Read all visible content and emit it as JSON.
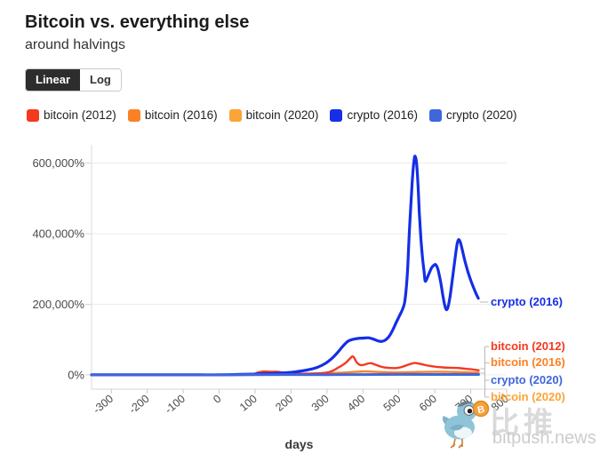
{
  "header": {
    "title": "Bitcoin vs. everything else",
    "subtitle": "around halvings"
  },
  "scale_toggle": {
    "options": [
      {
        "label": "Linear",
        "active": true
      },
      {
        "label": "Log",
        "active": false
      }
    ]
  },
  "legend": {
    "items": [
      {
        "label": "bitcoin (2012)",
        "color": "#f4391f"
      },
      {
        "label": "bitcoin (2016)",
        "color": "#fb8124"
      },
      {
        "label": "bitcoin (2020)",
        "color": "#fba438"
      },
      {
        "label": "crypto (2016)",
        "color": "#152ee6"
      },
      {
        "label": "crypto (2020)",
        "color": "#3f66dc"
      }
    ]
  },
  "chart_data": {
    "type": "line",
    "xlabel": "days",
    "xlim": [
      -355,
      800
    ],
    "ylim": [
      -40500,
      652000
    ],
    "grid": "horizontal",
    "x_ticks": [
      "-300",
      "-200",
      "-100",
      "0",
      "100",
      "200",
      "300",
      "400",
      "500",
      "600",
      "700",
      "800"
    ],
    "x_tick_values": [
      -300,
      -200,
      -100,
      0,
      100,
      200,
      300,
      400,
      500,
      600,
      700,
      800
    ],
    "y_ticks": [
      {
        "value": 0,
        "label": "0%"
      },
      {
        "value": 200000,
        "label": "200,000%"
      },
      {
        "value": 400000,
        "label": "400,000%"
      },
      {
        "value": 600000,
        "label": "600,000%"
      }
    ],
    "series": [
      {
        "name": "bitcoin (2020)",
        "color": "#fba438",
        "width": 2.2,
        "points": [
          [
            -355,
            0
          ],
          [
            -250,
            0
          ],
          [
            -150,
            0
          ],
          [
            -50,
            0
          ],
          [
            0,
            0
          ],
          [
            100,
            300
          ],
          [
            200,
            500
          ],
          [
            300,
            400
          ],
          [
            400,
            700
          ],
          [
            500,
            900
          ],
          [
            600,
            600
          ],
          [
            700,
            350
          ],
          [
            722,
            280
          ]
        ]
      },
      {
        "name": "bitcoin (2016)",
        "color": "#fb8124",
        "width": 2.4,
        "points": [
          [
            -355,
            0
          ],
          [
            -250,
            0
          ],
          [
            -150,
            0
          ],
          [
            -50,
            0
          ],
          [
            0,
            200
          ],
          [
            60,
            900
          ],
          [
            120,
            1700
          ],
          [
            180,
            2400
          ],
          [
            240,
            3200
          ],
          [
            290,
            4200
          ],
          [
            330,
            5600
          ],
          [
            360,
            7200
          ],
          [
            385,
            8800
          ],
          [
            405,
            9600
          ],
          [
            425,
            9200
          ],
          [
            445,
            8200
          ],
          [
            465,
            7400
          ],
          [
            490,
            6900
          ],
          [
            515,
            7100
          ],
          [
            545,
            7800
          ],
          [
            575,
            8400
          ],
          [
            605,
            8800
          ],
          [
            635,
            8400
          ],
          [
            660,
            7900
          ],
          [
            685,
            7300
          ],
          [
            705,
            6900
          ],
          [
            722,
            6700
          ]
        ]
      },
      {
        "name": "bitcoin (2012)",
        "color": "#f4391f",
        "width": 2.4,
        "points": [
          [
            -355,
            0
          ],
          [
            -300,
            0
          ],
          [
            -250,
            0
          ],
          [
            -200,
            0
          ],
          [
            -150,
            0
          ],
          [
            -100,
            0
          ],
          [
            -50,
            0
          ],
          [
            0,
            300
          ],
          [
            40,
            600
          ],
          [
            70,
            900
          ],
          [
            90,
            1500
          ],
          [
            100,
            3500
          ],
          [
            108,
            6500
          ],
          [
            116,
            8500
          ],
          [
            126,
            9500
          ],
          [
            136,
            9000
          ],
          [
            148,
            8700
          ],
          [
            158,
            9200
          ],
          [
            168,
            8000
          ],
          [
            178,
            6000
          ],
          [
            190,
            4200
          ],
          [
            205,
            3200
          ],
          [
            220,
            3000
          ],
          [
            240,
            3400
          ],
          [
            260,
            3900
          ],
          [
            280,
            4600
          ],
          [
            300,
            6500
          ],
          [
            312,
            10000
          ],
          [
            322,
            15000
          ],
          [
            332,
            21000
          ],
          [
            342,
            27000
          ],
          [
            352,
            34000
          ],
          [
            360,
            42000
          ],
          [
            366,
            48000
          ],
          [
            371,
            53000
          ],
          [
            376,
            48000
          ],
          [
            381,
            38000
          ],
          [
            387,
            31000
          ],
          [
            393,
            28000
          ],
          [
            400,
            28000
          ],
          [
            408,
            30000
          ],
          [
            416,
            32500
          ],
          [
            424,
            32800
          ],
          [
            432,
            30000
          ],
          [
            440,
            27000
          ],
          [
            450,
            23500
          ],
          [
            460,
            21000
          ],
          [
            472,
            19800
          ],
          [
            484,
            19200
          ],
          [
            495,
            19500
          ],
          [
            505,
            21500
          ],
          [
            517,
            25500
          ],
          [
            528,
            29500
          ],
          [
            538,
            32500
          ],
          [
            545,
            33500
          ],
          [
            552,
            32800
          ],
          [
            562,
            30500
          ],
          [
            575,
            27500
          ],
          [
            590,
            24800
          ],
          [
            605,
            22800
          ],
          [
            622,
            21200
          ],
          [
            640,
            20300
          ],
          [
            658,
            19800
          ],
          [
            672,
            18800
          ],
          [
            686,
            17200
          ],
          [
            700,
            15800
          ],
          [
            712,
            14300
          ],
          [
            722,
            13200
          ]
        ]
      },
      {
        "name": "crypto (2016)",
        "color": "#152ee6",
        "width": 3.2,
        "points": [
          [
            -355,
            0
          ],
          [
            -300,
            0
          ],
          [
            -250,
            0
          ],
          [
            -200,
            0
          ],
          [
            -150,
            0
          ],
          [
            -100,
            0
          ],
          [
            -50,
            0
          ],
          [
            0,
            0
          ],
          [
            40,
            800
          ],
          [
            80,
            1800
          ],
          [
            120,
            3000
          ],
          [
            160,
            4500
          ],
          [
            200,
            7000
          ],
          [
            230,
            11000
          ],
          [
            255,
            16000
          ],
          [
            275,
            22000
          ],
          [
            295,
            32000
          ],
          [
            315,
            48000
          ],
          [
            330,
            64000
          ],
          [
            345,
            82000
          ],
          [
            358,
            95000
          ],
          [
            370,
            100000
          ],
          [
            385,
            103000
          ],
          [
            400,
            104000
          ],
          [
            415,
            105000
          ],
          [
            430,
            101000
          ],
          [
            443,
            96000
          ],
          [
            453,
            95000
          ],
          [
            463,
            99000
          ],
          [
            472,
            108000
          ],
          [
            482,
            125000
          ],
          [
            492,
            147000
          ],
          [
            502,
            168000
          ],
          [
            510,
            185000
          ],
          [
            516,
            205000
          ],
          [
            521,
            250000
          ],
          [
            525,
            310000
          ],
          [
            529,
            400000
          ],
          [
            534,
            490000
          ],
          [
            538,
            560000
          ],
          [
            542,
            605000
          ],
          [
            545,
            620000
          ],
          [
            549,
            603000
          ],
          [
            553,
            545000
          ],
          [
            557,
            460000
          ],
          [
            561,
            390000
          ],
          [
            566,
            330000
          ],
          [
            570,
            295000
          ],
          [
            573,
            267000
          ],
          [
            577,
            270000
          ],
          [
            583,
            285000
          ],
          [
            591,
            303000
          ],
          [
            598,
            311000
          ],
          [
            603,
            312000
          ],
          [
            609,
            298000
          ],
          [
            616,
            265000
          ],
          [
            622,
            228000
          ],
          [
            627,
            200000
          ],
          [
            632,
            185000
          ],
          [
            637,
            193000
          ],
          [
            643,
            225000
          ],
          [
            650,
            280000
          ],
          [
            657,
            335000
          ],
          [
            662,
            370000
          ],
          [
            666,
            383000
          ],
          [
            671,
            376000
          ],
          [
            677,
            352000
          ],
          [
            684,
            322000
          ],
          [
            692,
            293000
          ],
          [
            700,
            268000
          ],
          [
            708,
            247000
          ],
          [
            715,
            230000
          ],
          [
            721,
            217000
          ]
        ]
      },
      {
        "name": "crypto (2020)",
        "color": "#3f66dc",
        "width": 3.0,
        "points": [
          [
            -355,
            0
          ],
          [
            -250,
            0
          ],
          [
            -150,
            0
          ],
          [
            -50,
            0
          ],
          [
            0,
            0
          ],
          [
            100,
            400
          ],
          [
            200,
            700
          ],
          [
            300,
            600
          ],
          [
            400,
            900
          ],
          [
            500,
            1200
          ],
          [
            600,
            1000
          ],
          [
            700,
            1100
          ],
          [
            722,
            1150
          ]
        ]
      }
    ],
    "end_labels": [
      {
        "text": "crypto (2016)",
        "color": "#152ee6"
      },
      {
        "text": "bitcoin (2012)",
        "color": "#f4391f"
      },
      {
        "text": "bitcoin (2016)",
        "color": "#fb8124"
      },
      {
        "text": "crypto (2020)",
        "color": "#3f66dc"
      },
      {
        "text": "bitcoin (2020)",
        "color": "#fba438"
      }
    ]
  },
  "watermark": {
    "cn": "比推",
    "site": "bitpush.news"
  }
}
